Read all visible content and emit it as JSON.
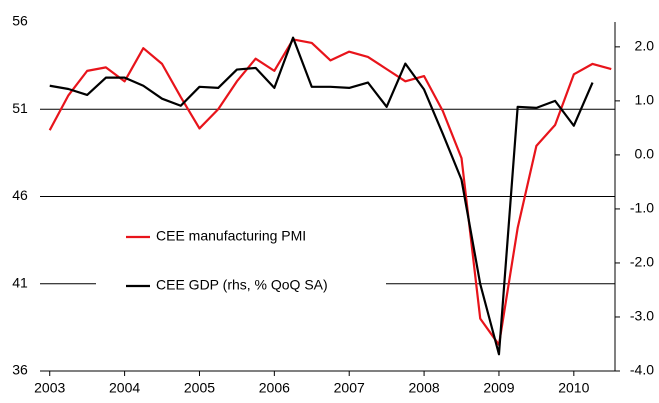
{
  "chart_data": {
    "type": "line",
    "x": [
      2003,
      2003.25,
      2003.5,
      2003.75,
      2004,
      2004.25,
      2004.5,
      2004.75,
      2005,
      2005.25,
      2005.5,
      2005.75,
      2006,
      2006.25,
      2006.5,
      2006.75,
      2007,
      2007.25,
      2007.5,
      2007.75,
      2008,
      2008.25,
      2008.5,
      2008.75,
      2009,
      2009.25,
      2009.5,
      2009.75,
      2010,
      2010.25,
      2010.5
    ],
    "series": [
      {
        "name": "CEE manufacturing PMI",
        "color": "#e8141b",
        "values": [
          49.8,
          51.8,
          53.2,
          53.4,
          52.6,
          54.5,
          53.6,
          51.7,
          49.9,
          51.0,
          52.6,
          53.9,
          53.2,
          55.0,
          54.8,
          53.8,
          54.3,
          54.0,
          53.3,
          52.6,
          52.9,
          50.9,
          48.2,
          39.0,
          37.5,
          44.2,
          48.9,
          50.1,
          53.0,
          53.6,
          53.3
        ]
      },
      {
        "name": "CEE GDP (rhs, % QoQ SA)",
        "color": "#000000",
        "axis": "y2",
        "values": [
          1.28,
          1.22,
          1.11,
          1.43,
          1.43,
          1.28,
          1.04,
          0.91,
          1.26,
          1.24,
          1.58,
          1.61,
          1.24,
          2.17,
          1.26,
          1.26,
          1.24,
          1.34,
          0.89,
          1.69,
          1.21,
          0.39,
          -0.46,
          -2.39,
          -3.69,
          0.89,
          0.87,
          1.0,
          0.54,
          1.34,
          null
        ]
      }
    ],
    "xlim": [
      2002.87,
      2010.55
    ],
    "xticks": [
      2003,
      2004,
      2005,
      2006,
      2007,
      2008,
      2009,
      2010
    ],
    "ylim": [
      36,
      56
    ],
    "yticks": [
      36,
      41,
      46,
      51,
      56
    ],
    "y2lim": [
      -4,
      2.46
    ],
    "y2ticks": [
      {
        "value": -4,
        "label": "-4.0"
      },
      {
        "value": -3,
        "label": "-3.0"
      },
      {
        "value": -2,
        "label": "-2.0"
      },
      {
        "value": -1,
        "label": "-1.0"
      },
      {
        "value": 0,
        "label": "0.0"
      },
      {
        "value": 1,
        "label": "1.0"
      },
      {
        "value": 2,
        "label": "2.0"
      }
    ],
    "grid": true
  }
}
